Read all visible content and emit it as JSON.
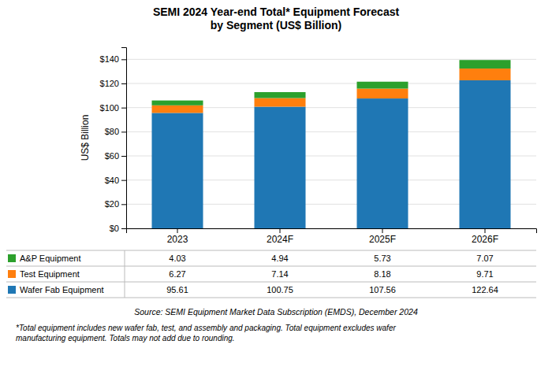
{
  "chart_data": {
    "type": "bar",
    "stacked": true,
    "title": "SEMI 2024 Year-end Total* Equipment Forecast\nby Segment (US$ Billion)",
    "categories": [
      "2023",
      "2024F",
      "2025F",
      "2026F"
    ],
    "series": [
      {
        "name": "Wafer Fab Equipment",
        "values": [
          95.61,
          100.75,
          107.56,
          122.64
        ]
      },
      {
        "name": "Test Equipment",
        "values": [
          6.27,
          7.14,
          8.18,
          9.71
        ]
      },
      {
        "name": "A&P Equipment",
        "values": [
          4.03,
          4.94,
          5.73,
          7.07
        ]
      }
    ],
    "ylabel": "US$ Billion",
    "ylim": [
      0,
      150
    ],
    "yticks": [
      {
        "value": 0,
        "label": "$0"
      },
      {
        "value": 20,
        "label": "$20"
      },
      {
        "value": 40,
        "label": "$40"
      },
      {
        "value": 60,
        "label": "$60"
      },
      {
        "value": 80,
        "label": "$80"
      },
      {
        "value": 100,
        "label": "$100"
      },
      {
        "value": 120,
        "label": "$120"
      },
      {
        "value": 140,
        "label": "$140"
      }
    ],
    "grid": true,
    "legend": "bottom",
    "data_labels": true,
    "annotations": [
      "Source: SEMI Equipment Market Data Subscription (EMDS), December 2024",
      "*Total equipment includes new wafer fab, test, and assembly and packaging. Total equipment excludes wafer\nmanufacturing equipment. Totals may not add due to rounding."
    ]
  }
}
